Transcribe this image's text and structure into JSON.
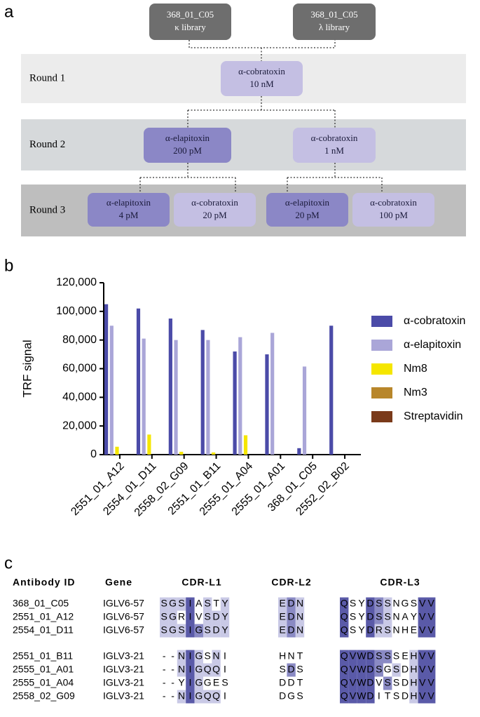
{
  "panel_labels": [
    "a",
    "b",
    "c"
  ],
  "diagram": {
    "rounds": [
      "Round 1",
      "Round 2",
      "Round 3"
    ],
    "round_colors": [
      "#ececec",
      "#d6d9db",
      "#bebebe"
    ],
    "nodes": [
      {
        "lines": [
          "368_01_C05",
          "κ library"
        ],
        "color": "#6e6e6e"
      },
      {
        "lines": [
          "368_01_C05",
          "λ library"
        ],
        "color": "#6e6e6e"
      },
      {
        "lines": [
          "α-cobratoxin",
          "10 nM"
        ],
        "color": "#c4bfe3"
      },
      {
        "lines": [
          "α-elapitoxin",
          "200 pM"
        ],
        "color": "#8b87c6"
      },
      {
        "lines": [
          "α-cobratoxin",
          "1 nM"
        ],
        "color": "#c4bfe3"
      },
      {
        "lines": [
          "α-elapitoxin",
          "4 pM"
        ],
        "color": "#8b87c6"
      },
      {
        "lines": [
          "α-cobratoxin",
          "20 pM"
        ],
        "color": "#c4bfe3"
      },
      {
        "lines": [
          "α-elapitoxin",
          "20 pM"
        ],
        "color": "#8b87c6"
      },
      {
        "lines": [
          "α-cobratoxin",
          "100 pM"
        ],
        "color": "#c4bfe3"
      }
    ]
  },
  "chart_data": {
    "type": "bar",
    "y_label": "TRF signal",
    "categories": [
      "2551_01_A12",
      "2554_01_D11",
      "2558_02_G09",
      "2551_01_B11",
      "2555_01_A04",
      "2555_01_A01",
      "368_01_C05",
      "2552_02_B02"
    ],
    "series": [
      {
        "name": "α-cobratoxin",
        "color": "#4b4ba8",
        "values": [
          105000,
          102000,
          95000,
          87000,
          72000,
          70000,
          4500,
          90000
        ]
      },
      {
        "name": "α-elapitoxin",
        "color": "#aaa6d8",
        "values": [
          90000,
          81000,
          80000,
          80000,
          82000,
          85000,
          61500,
          0
        ]
      },
      {
        "name": "Nm8",
        "color": "#f5e600",
        "values": [
          5500,
          14000,
          2000,
          1500,
          13500,
          0,
          0,
          0
        ]
      },
      {
        "name": "Nm3",
        "color": "#b8862a",
        "values": [
          0,
          0,
          0,
          0,
          0,
          0,
          0,
          0
        ]
      },
      {
        "name": "Streptavidin",
        "color": "#7a3a1a",
        "values": [
          0,
          0,
          0,
          0,
          0,
          0,
          0,
          0
        ]
      }
    ],
    "ylim": [
      0,
      120000
    ],
    "yticks": [
      0,
      {
        "value": 20000,
        "label": "20,000"
      },
      {
        "value": 40000,
        "label": "40,000"
      },
      {
        "value": 60000,
        "label": "60,000"
      },
      {
        "value": 80000,
        "label": "80,000"
      },
      {
        "value": 100000,
        "label": "100,000"
      },
      {
        "value": 120000,
        "label": "120,000"
      }
    ],
    "legend": "right"
  },
  "alignment": {
    "headers": [
      "Antibody ID",
      "Gene",
      "CDR-L1",
      "CDR-L2",
      "CDR-L3"
    ],
    "shade_colors": [
      "#c9c9e6",
      "#8a8ac4",
      "#5a5aa8"
    ],
    "rows": [
      {
        "id": "368_01_C05",
        "gene": "IGLV6-57",
        "cdr1": "SGSIASTY",
        "shade1": [
          1,
          1,
          1,
          3,
          0,
          1,
          0,
          1
        ],
        "cdr2": "EDN",
        "shade2": [
          1,
          2,
          1
        ],
        "cdr3": "QSYDSSNGSVV",
        "shade3": [
          3,
          0,
          0,
          3,
          2,
          1,
          0,
          0,
          0,
          3,
          3
        ]
      },
      {
        "id": "2551_01_A12",
        "gene": "IGLV6-57",
        "cdr1": "SGRIVSDY",
        "shade1": [
          1,
          1,
          0,
          3,
          0,
          1,
          1,
          1
        ],
        "cdr2": "EDN",
        "shade2": [
          1,
          2,
          1
        ],
        "cdr3": "QSYDSSNAYVV",
        "shade3": [
          3,
          0,
          0,
          3,
          2,
          1,
          0,
          0,
          0,
          3,
          3
        ]
      },
      {
        "id": "2554_01_D11",
        "gene": "IGLV6-57",
        "cdr1": "SGSIGSDY",
        "shade1": [
          1,
          1,
          1,
          3,
          2,
          1,
          1,
          1
        ],
        "cdr2": "EDN",
        "shade2": [
          1,
          2,
          1
        ],
        "cdr3": "QSYDRSNHEVV",
        "shade3": [
          3,
          0,
          0,
          3,
          1,
          1,
          0,
          0,
          0,
          3,
          3
        ]
      },
      {
        "id": "2551_01_B11",
        "gene": "IGLV3-21",
        "cdr1": "--NIGSNI",
        "shade1": [
          0,
          0,
          1,
          3,
          1,
          0,
          1,
          0
        ],
        "cdr2": "HNT",
        "shade2": [
          0,
          0,
          0
        ],
        "cdr3": "QVWDSSSEHVV",
        "shade3": [
          3,
          3,
          3,
          3,
          2,
          2,
          0,
          0,
          1,
          3,
          3
        ]
      },
      {
        "id": "2555_01_A01",
        "gene": "IGLV3-21",
        "cdr1": "--NIGQQI",
        "shade1": [
          0,
          0,
          1,
          3,
          1,
          1,
          1,
          0
        ],
        "cdr2": "SDS",
        "shade2": [
          0,
          2,
          0
        ],
        "cdr3": "QVWDSGSDHVV",
        "shade3": [
          3,
          3,
          3,
          3,
          2,
          0,
          1,
          0,
          1,
          3,
          3
        ]
      },
      {
        "id": "2555_01_A04",
        "gene": "IGLV3-21",
        "cdr1": "--YIGGES",
        "shade1": [
          0,
          0,
          0,
          3,
          1,
          0,
          0,
          0
        ],
        "cdr2": "DDT",
        "shade2": [
          0,
          0,
          0
        ],
        "cdr3": "QVWDVSSDHVV",
        "shade3": [
          3,
          3,
          3,
          3,
          0,
          2,
          0,
          0,
          1,
          3,
          3
        ]
      },
      {
        "id": "2558_02_G09",
        "gene": "IGLV3-21",
        "cdr1": "--NIGQQI",
        "shade1": [
          0,
          0,
          1,
          3,
          1,
          1,
          1,
          0
        ],
        "cdr2": "DGS",
        "shade2": [
          0,
          0,
          0
        ],
        "cdr3": "QVWDITSDHVV",
        "shade3": [
          3,
          3,
          3,
          3,
          0,
          0,
          0,
          0,
          1,
          3,
          3
        ]
      }
    ]
  }
}
